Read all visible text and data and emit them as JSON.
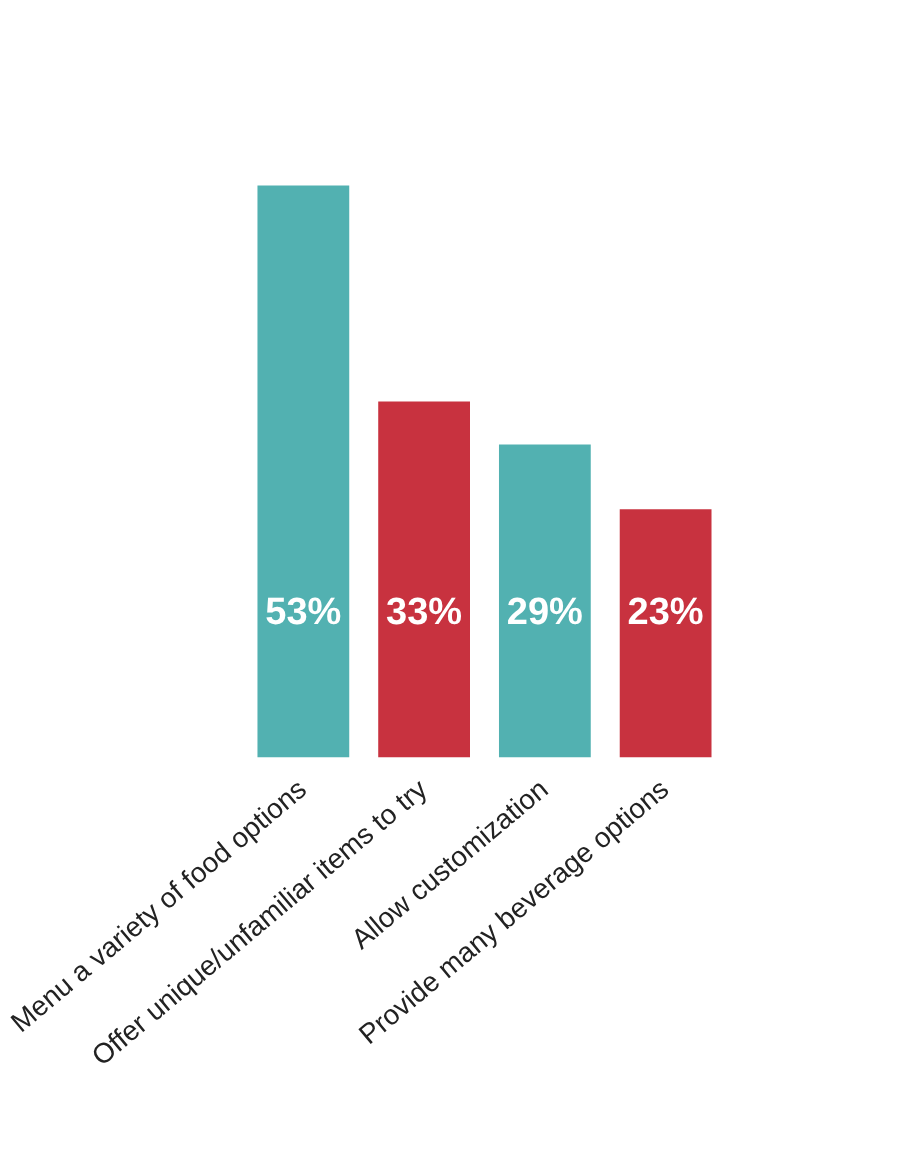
{
  "chart_data": {
    "type": "bar",
    "categories": [
      "Menu a variety of food options",
      "Offer unique/unfamiliar items to try",
      "Allow customization",
      "Provide many beverage options"
    ],
    "values": [
      53,
      33,
      29,
      23
    ],
    "colors": [
      "#52b1b1",
      "#c8323f",
      "#52b1b1",
      "#c8323f"
    ],
    "value_labels": [
      "53%",
      "33%",
      "29%",
      "23%"
    ],
    "grid": false,
    "legend": false
  }
}
